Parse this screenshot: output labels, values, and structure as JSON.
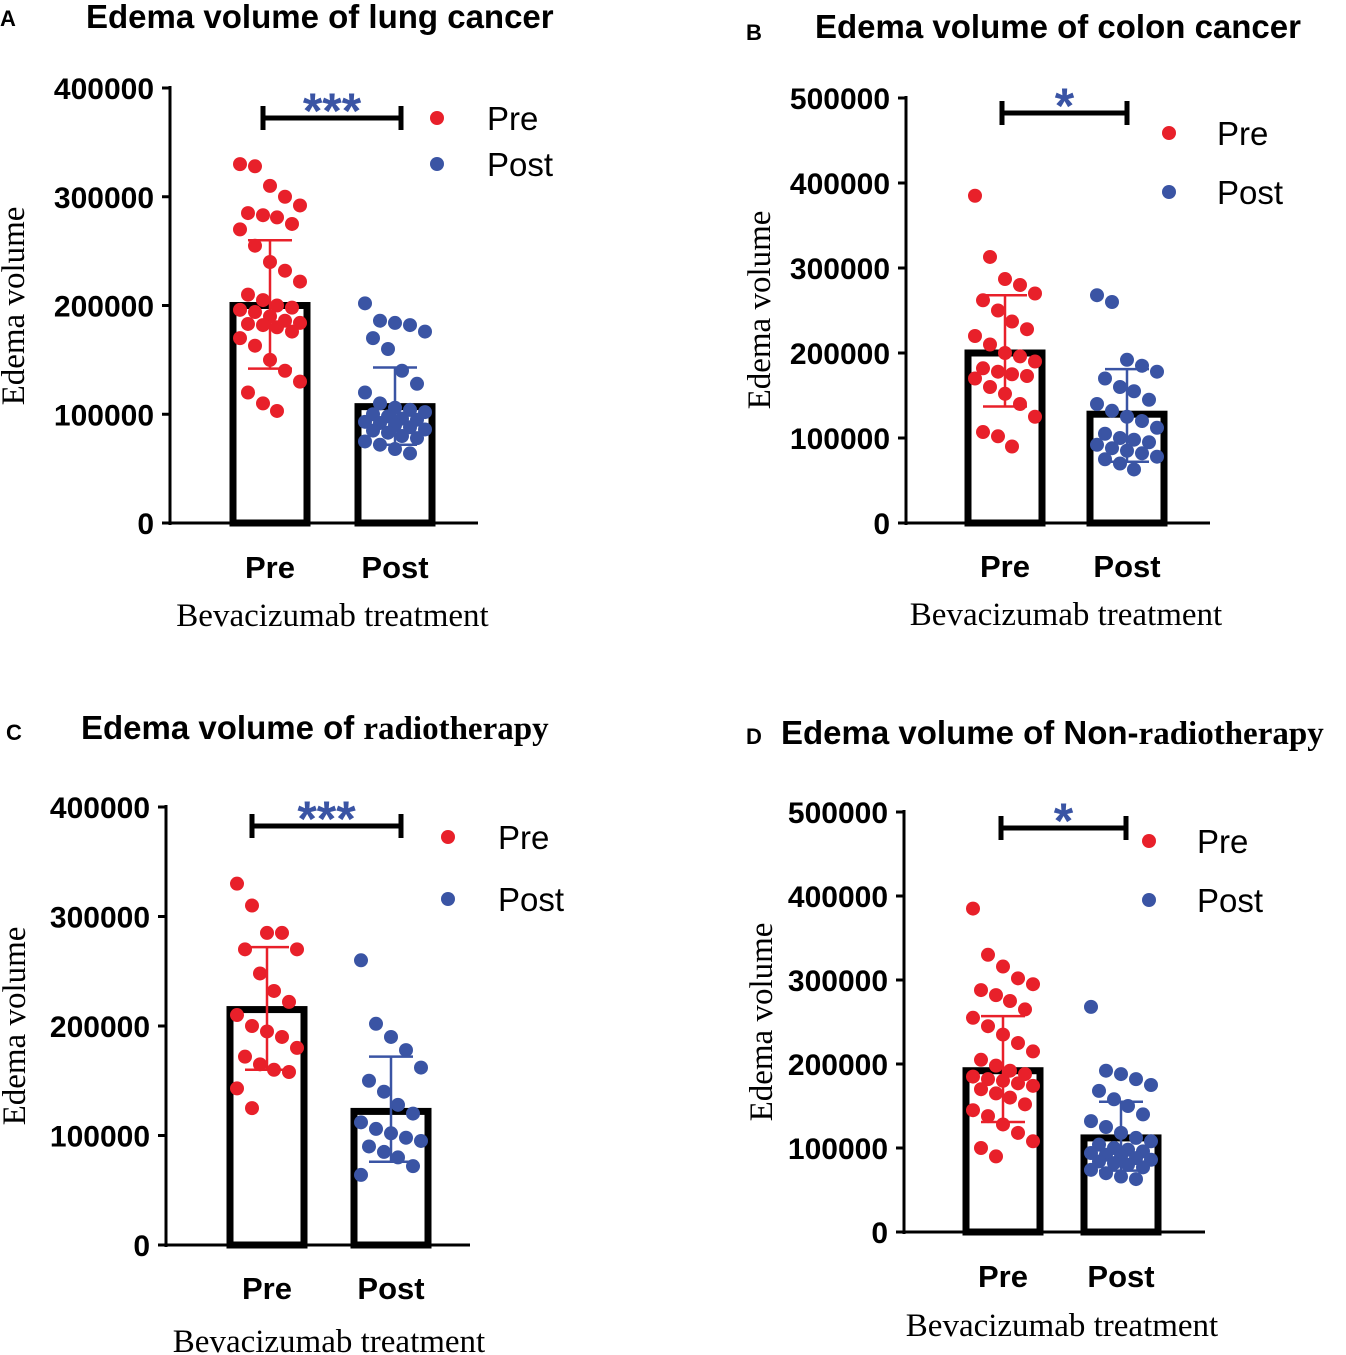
{
  "colors": {
    "pre": "#e8202a",
    "post": "#3a54a4",
    "axis": "#000000"
  },
  "chart_data": [
    {
      "type": "bar",
      "panel": "A",
      "title": "Edema volume of lung cancer",
      "title_parts": [
        {
          "text": "Edema volume of lung cancer",
          "serif": false
        }
      ],
      "xlabel": "Bevacizumab treatment",
      "ylabel": "Edema volume",
      "categories": [
        "Pre",
        "Post"
      ],
      "values": [
        200000,
        107000
      ],
      "error": [
        [
          142000,
          260000
        ],
        [
          72000,
          143000
        ]
      ],
      "ylim": [
        0,
        400000
      ],
      "yticks": [
        0,
        100000,
        200000,
        300000,
        400000
      ],
      "ytick_labels": [
        "0",
        "100000",
        "200000",
        "300000",
        "400000"
      ],
      "significance": "***",
      "legend": [
        "Pre",
        "Post"
      ],
      "points": [
        [
          330000,
          328000,
          310000,
          300000,
          292000,
          285000,
          283000,
          281000,
          275000,
          270000,
          255000,
          240000,
          232000,
          222000,
          210000,
          205000,
          200000,
          198000,
          196000,
          194000,
          190000,
          186000,
          184000,
          183000,
          182000,
          180000,
          176000,
          170000,
          163000,
          150000,
          140000,
          130000,
          120000,
          110000,
          103000
        ],
        [
          202000,
          186000,
          184000,
          182000,
          176000,
          170000,
          160000,
          140000,
          128000,
          120000,
          110000,
          106000,
          104000,
          102000,
          100000,
          98000,
          96000,
          95000,
          93000,
          92000,
          90000,
          88000,
          86000,
          85000,
          83000,
          80000,
          78000,
          75000,
          72000,
          68000,
          64000
        ]
      ]
    },
    {
      "type": "bar",
      "panel": "B",
      "title": "Edema volume of colon cancer",
      "title_parts": [
        {
          "text": "Edema volume of colon cancer",
          "serif": false
        }
      ],
      "xlabel": "Bevacizumab treatment",
      "ylabel": "Edema volume",
      "categories": [
        "Pre",
        "Post"
      ],
      "values": [
        200000,
        128000
      ],
      "error": [
        [
          137000,
          268000
        ],
        [
          72000,
          181000
        ]
      ],
      "ylim": [
        0,
        500000
      ],
      "yticks": [
        0,
        100000,
        200000,
        300000,
        400000,
        500000
      ],
      "ytick_labels": [
        "0",
        "100000",
        "200000",
        "300000",
        "400000",
        "500000"
      ],
      "significance": "*",
      "legend": [
        "Pre",
        "Post"
      ],
      "points": [
        [
          385000,
          313000,
          287000,
          280000,
          270000,
          262000,
          250000,
          237000,
          228000,
          220000,
          210000,
          200000,
          196000,
          190000,
          182000,
          178000,
          175000,
          173000,
          170000,
          160000,
          152000,
          140000,
          125000,
          107000,
          102000,
          90000
        ],
        [
          268000,
          260000,
          192000,
          185000,
          178000,
          170000,
          160000,
          155000,
          145000,
          140000,
          132000,
          125000,
          120000,
          112000,
          105000,
          100000,
          98000,
          95000,
          92000,
          88000,
          85000,
          82000,
          78000,
          75000,
          70000,
          63000
        ]
      ]
    },
    {
      "type": "bar",
      "panel": "C",
      "title": "Edema volume of radiotherapy",
      "title_parts": [
        {
          "text": "Edema volume of ",
          "serif": false
        },
        {
          "text": "radiotherapy",
          "serif": true
        }
      ],
      "xlabel": "Bevacizumab treatment",
      "ylabel": "Edema volume",
      "categories": [
        "Pre",
        "Post"
      ],
      "values": [
        215000,
        122000
      ],
      "error": [
        [
          160000,
          272000
        ],
        [
          76000,
          172000
        ]
      ],
      "ylim": [
        0,
        400000
      ],
      "yticks": [
        0,
        100000,
        200000,
        300000,
        400000
      ],
      "ytick_labels": [
        "0",
        "100000",
        "200000",
        "300000",
        "400000"
      ],
      "significance": "***",
      "legend": [
        "Pre",
        "Post"
      ],
      "points": [
        [
          330000,
          310000,
          285000,
          285000,
          270000,
          270000,
          248000,
          232000,
          222000,
          210000,
          200000,
          195000,
          190000,
          180000,
          172000,
          165000,
          160000,
          158000,
          143000,
          125000
        ],
        [
          260000,
          202000,
          190000,
          178000,
          162000,
          150000,
          140000,
          128000,
          120000,
          112000,
          106000,
          102000,
          98000,
          95000,
          90000,
          85000,
          80000,
          72000,
          64000
        ]
      ]
    },
    {
      "type": "bar",
      "panel": "D",
      "title": "Edema volume of  Non-radiotherapy",
      "title_parts": [
        {
          "text": "Edema volume of  Non-",
          "serif": false
        },
        {
          "text": "radiotherapy",
          "serif": true
        }
      ],
      "xlabel": "Bevacizumab treatment",
      "ylabel": "Edema volume",
      "categories": [
        "Pre",
        "Post"
      ],
      "values": [
        192000,
        112000
      ],
      "error": [
        [
          131000,
          257000
        ],
        [
          73000,
          155000
        ]
      ],
      "ylim": [
        0,
        500000
      ],
      "yticks": [
        0,
        100000,
        200000,
        300000,
        400000,
        500000
      ],
      "ytick_labels": [
        "0",
        "100000",
        "200000",
        "300000",
        "400000",
        "500000"
      ],
      "significance": "*",
      "legend": [
        "Pre",
        "Post"
      ],
      "points": [
        [
          385000,
          330000,
          316000,
          302000,
          295000,
          288000,
          282000,
          275000,
          265000,
          255000,
          245000,
          235000,
          225000,
          215000,
          205000,
          198000,
          192000,
          188000,
          185000,
          182000,
          180000,
          177000,
          174000,
          170000,
          165000,
          160000,
          152000,
          145000,
          138000,
          128000,
          118000,
          108000,
          100000,
          90000
        ],
        [
          268000,
          192000,
          188000,
          182000,
          175000,
          168000,
          158000,
          150000,
          140000,
          132000,
          125000,
          118000,
          112000,
          108000,
          104000,
          100000,
          98000,
          96000,
          94000,
          92000,
          90000,
          88000,
          86000,
          84000,
          82000,
          80000,
          77000,
          74000,
          70000,
          66000,
          63000
        ]
      ]
    }
  ]
}
